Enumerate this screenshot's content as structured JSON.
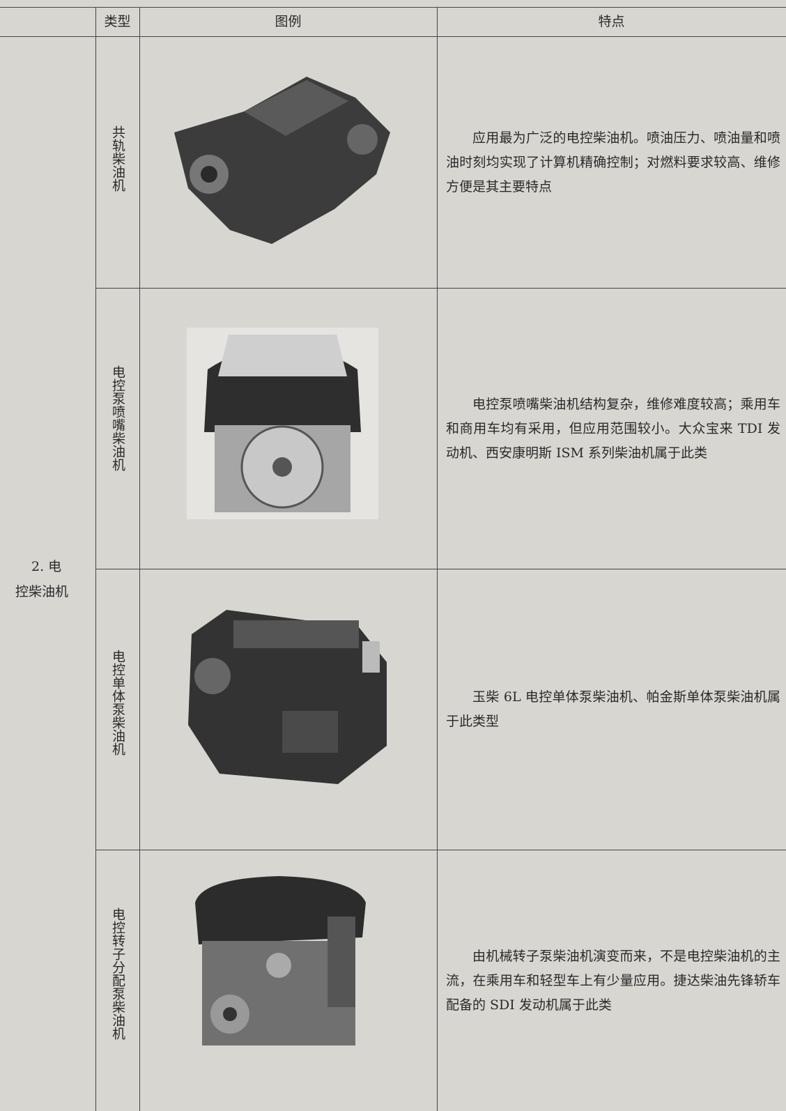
{
  "table": {
    "header": [
      "类型",
      "图例",
      "特点"
    ],
    "group": "2. 电控柴油机",
    "rows": [
      {
        "type": "共轨柴油机",
        "feature": "应用最为广泛的电控柴油机。喷油压力、喷油量和喷油时刻均实现了计算机精确控制；对燃料要求较高、维修方便是其主要特点"
      },
      {
        "type": "电控泵喷嘴柴油机",
        "feature": "电控泵喷嘴柴油机结构复杂，维修难度较高；乘用车和商用车均有采用，但应用范围较小。大众宝来 TDI 发动机、西安康明斯 ISM 系列柴油机属于此类"
      },
      {
        "type": "电控单体泵柴油机",
        "feature": "玉柴 6L 电控单体泵柴油机、帕金斯单体泵柴油机属于此类型"
      },
      {
        "type": "电控转子分配泵柴油机",
        "feature": "由机械转子泵柴油机演变而来，不是电控柴油机的主流，在乘用车和轻型车上有少量应用。捷达柴油先锋轿车配备的 SDI 发动机属于此类"
      }
    ]
  }
}
